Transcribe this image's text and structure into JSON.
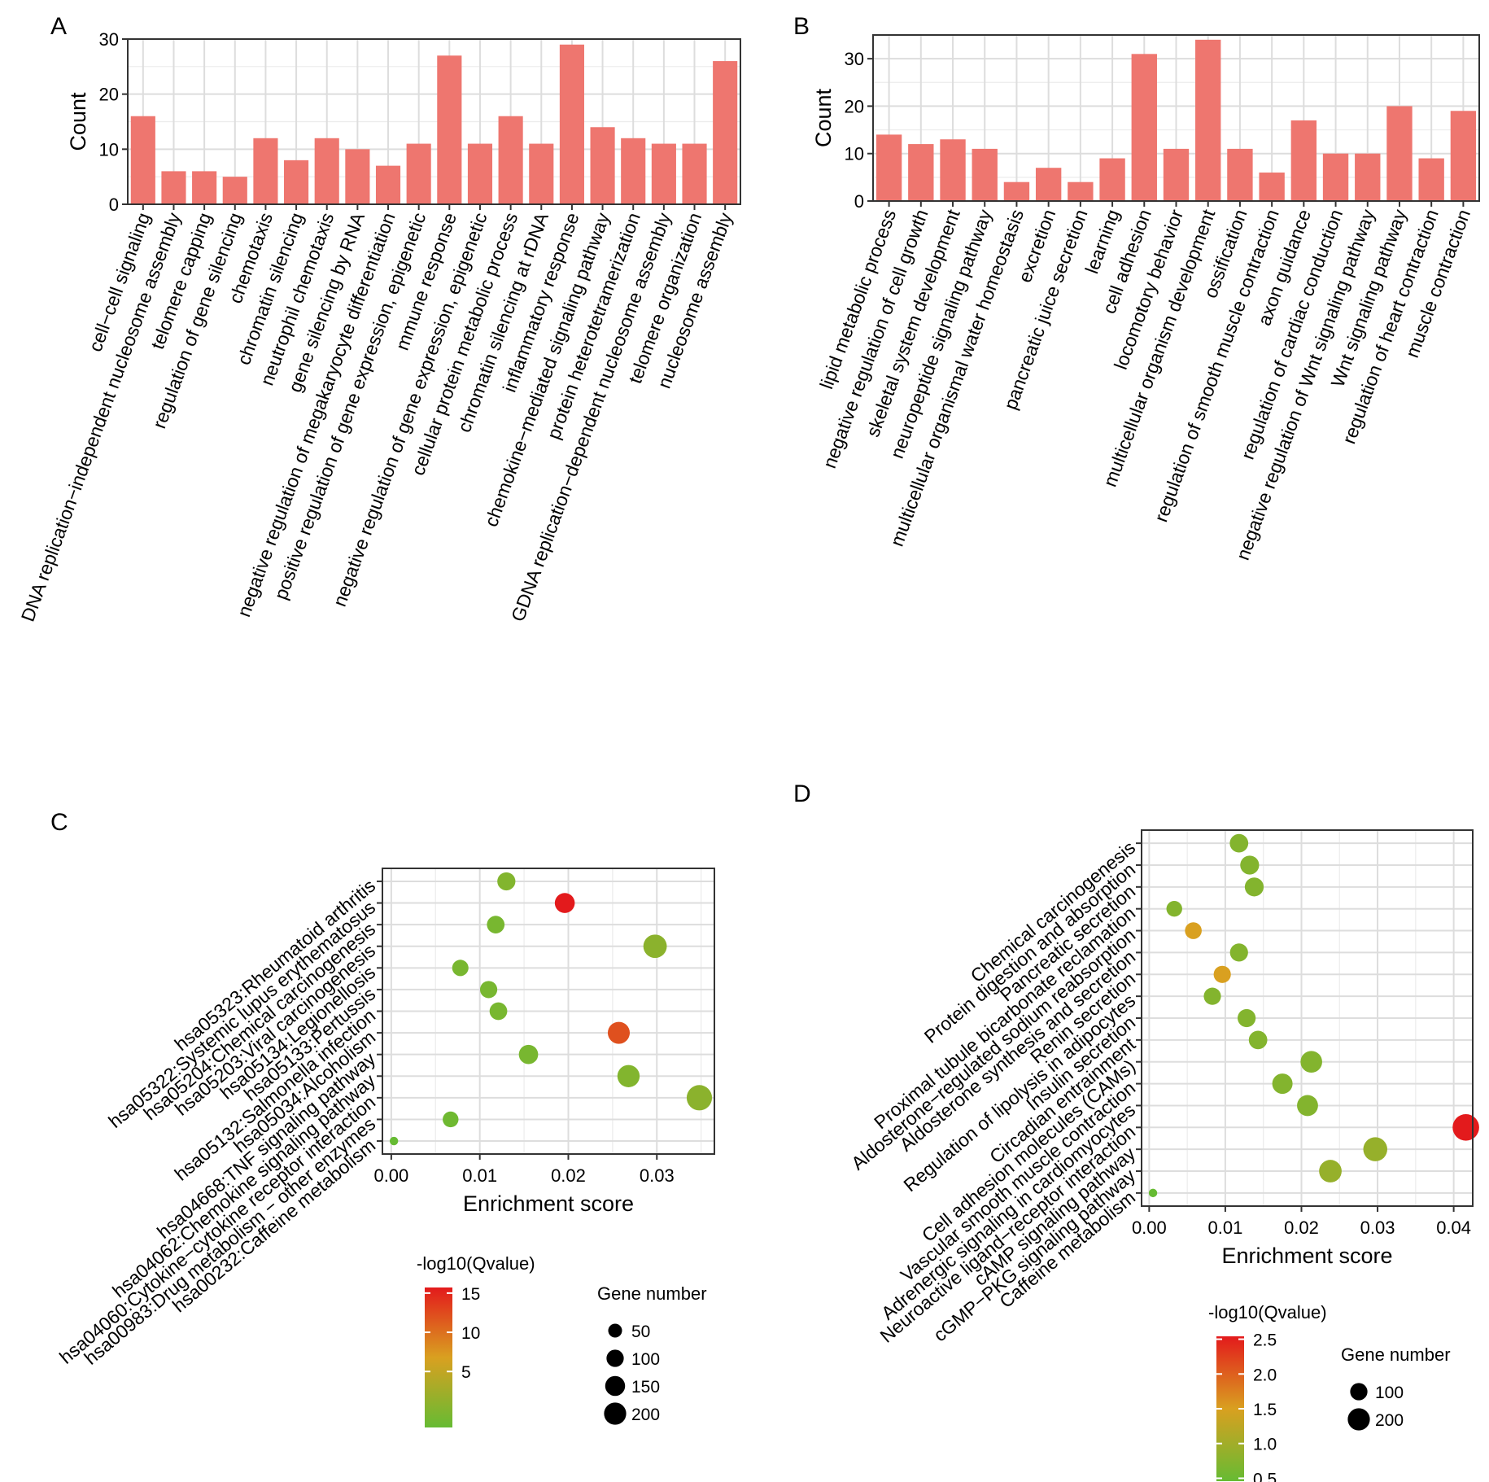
{
  "chart_data": [
    {
      "panel": "A",
      "type": "bar",
      "ylabel": "Count",
      "ylim": [
        0,
        30
      ],
      "yticks": [
        0,
        10,
        20,
        30
      ],
      "bar_color": "#EE766F",
      "grid": true,
      "categories": [
        "cell−cell signaling",
        "DNA replication−independent nucleosome assembly",
        "telomere capping",
        "regulation of gene silencing",
        "chemotaxis",
        "chromatin silencing",
        "neutrophil chemotaxis",
        "gene silencing by RNA",
        "negative regulation of megakaryocyte differentiation",
        "positive regulation of gene expression, epigenetic",
        "mmune response",
        "negative regulation of gene expression, epigenetic",
        "cellular protein metabolic process",
        "chromatin silencing at rDNA",
        "inflammatory response",
        "chemokine−mediated signaling pathway",
        "protein heterotetramerization",
        "GDNA replication−dependent nucleosome assembly",
        "telomere organization",
        "nucleosome assembly"
      ],
      "values": [
        16,
        6,
        6,
        5,
        12,
        8,
        12,
        10,
        7,
        11,
        27,
        11,
        16,
        11,
        29,
        14,
        12,
        11,
        11,
        26
      ]
    },
    {
      "panel": "B",
      "type": "bar",
      "ylabel": "Count",
      "ylim": [
        0,
        35
      ],
      "yticks": [
        0,
        10,
        20,
        30
      ],
      "bar_color": "#EE766F",
      "grid": true,
      "categories": [
        "lipid metabolic process",
        "negative regulation of cell growth",
        "skeletal system development",
        "neuropeptide signaling pathway",
        "multicellular organismal water homeostasis",
        "excretion",
        "pancreatic juice secretion",
        "learning",
        "cell adhesion",
        "locomotory behavior",
        "multicellular organism development",
        "ossification",
        "regulation of smooth muscle contraction",
        "axon guidance",
        "regulation of cardiac conduction",
        "negative regulation of Wnt signaling pathway",
        "Wnt signaling pathway",
        "regulation of heart contraction",
        "muscle contraction"
      ],
      "values": [
        14,
        12,
        13,
        11,
        4,
        7,
        4,
        9,
        31,
        11,
        34,
        11,
        6,
        17,
        10,
        10,
        20,
        9,
        19
      ]
    },
    {
      "panel": "C",
      "type": "scatter",
      "xlabel": "Enrichment score",
      "xlim": [
        -0.001,
        0.0365
      ],
      "xticks": [
        "0.00",
        "0.01",
        "0.02",
        "0.03"
      ],
      "color_legend_title": "-log10(Qvalue)",
      "color_ticks": [
        "15",
        "10",
        "5"
      ],
      "color_scale": {
        "low": "#66BB33",
        "mid": "#D9A020",
        "high": "#E31A1C"
      },
      "size_legend_title": "Gene number",
      "size_ticks": [
        "50",
        "100",
        "150",
        "200"
      ],
      "categories": [
        "hsa05323:Rheumatoid arthritis",
        "hsa05322:Systemic lupus erythematosus",
        "hsa05204:Chemical carcinogenesis",
        "hsa05203:Viral carcinogenesis",
        "hsa05134:Legionellosis",
        "hsa05133:Pertussis",
        "hsa05132:Salmonella infection",
        "hsa05034:Alcoholism",
        "hsa04668:TNF signaling pathway",
        "hsa04062:Chemokine signaling pathway",
        "hsa04060:Cytokine−cytokine receptor interaction",
        "hsa00983:Drug metabolism − other enzymes",
        "hsa00232:Caffeine metabolism"
      ],
      "points": [
        {
          "x": 0.013,
          "q": 4.5,
          "size": 70
        },
        {
          "x": 0.0196,
          "q": 15.5,
          "size": 95
        },
        {
          "x": 0.0118,
          "q": 4.0,
          "size": 65
        },
        {
          "x": 0.0298,
          "q": 5.0,
          "size": 150
        },
        {
          "x": 0.0078,
          "q": 4.0,
          "size": 50
        },
        {
          "x": 0.011,
          "q": 4.0,
          "size": 60
        },
        {
          "x": 0.0121,
          "q": 4.0,
          "size": 65
        },
        {
          "x": 0.0257,
          "q": 13.0,
          "size": 125
        },
        {
          "x": 0.0155,
          "q": 4.0,
          "size": 85
        },
        {
          "x": 0.0268,
          "q": 4.5,
          "size": 130
        },
        {
          "x": 0.0348,
          "q": 5.0,
          "size": 185
        },
        {
          "x": 0.0067,
          "q": 3.5,
          "size": 45
        },
        {
          "x": 0.0003,
          "q": 3.0,
          "size": 2
        }
      ]
    },
    {
      "panel": "D",
      "type": "scatter",
      "xlabel": "Enrichment score",
      "xlim": [
        -0.001,
        0.0425
      ],
      "xticks": [
        "0.00",
        "0.01",
        "0.02",
        "0.03",
        "0.04"
      ],
      "color_legend_title": "-log10(Qvalue)",
      "color_ticks": [
        "2.5",
        "2.0",
        "1.5",
        "1.0",
        "0.5"
      ],
      "color_scale": {
        "low": "#66BB33",
        "mid": "#D9A020",
        "high": "#E31A1C"
      },
      "size_legend_title": "Gene number",
      "size_ticks": [
        "100",
        "200"
      ],
      "categories": [
        "Chemical carcinogenesis",
        "Protein digestion and absorption",
        "Pancreatic secretion",
        "Proximal tubule bicarbonate reclamation",
        "Aldosterone−regulated sodium reabsorption",
        "Aldosterone synthesis and secretion",
        "Renin secretion",
        "Regulation of lipolysis in adipocytes",
        "Insulin secretion",
        "Circadian entrainment",
        "Cell adhesion molecules (CAMs)",
        "Vascular smooth muscle contraction",
        "Adrenergic signaling in cardiomyocytes",
        "Neuroactive ligand−receptor interaction",
        "cAMP signaling pathway",
        "cGMP−PKG signaling pathway",
        "Caffeine metabolism"
      ],
      "points": [
        {
          "x": 0.0118,
          "q": 0.6,
          "size": 75
        },
        {
          "x": 0.0132,
          "q": 0.6,
          "size": 80
        },
        {
          "x": 0.0138,
          "q": 0.6,
          "size": 80
        },
        {
          "x": 0.0033,
          "q": 0.6,
          "size": 45
        },
        {
          "x": 0.0058,
          "q": 1.5,
          "size": 55
        },
        {
          "x": 0.0118,
          "q": 0.6,
          "size": 70
        },
        {
          "x": 0.0096,
          "q": 1.5,
          "size": 60
        },
        {
          "x": 0.0083,
          "q": 0.6,
          "size": 60
        },
        {
          "x": 0.0128,
          "q": 0.6,
          "size": 70
        },
        {
          "x": 0.0143,
          "q": 0.6,
          "size": 75
        },
        {
          "x": 0.0213,
          "q": 0.6,
          "size": 120
        },
        {
          "x": 0.0175,
          "q": 0.6,
          "size": 100
        },
        {
          "x": 0.0208,
          "q": 0.6,
          "size": 110
        },
        {
          "x": 0.0416,
          "q": 2.7,
          "size": 210
        },
        {
          "x": 0.0297,
          "q": 0.8,
          "size": 160
        },
        {
          "x": 0.0238,
          "q": 0.8,
          "size": 135
        },
        {
          "x": 0.0005,
          "q": 0.3,
          "size": 2
        }
      ]
    }
  ]
}
